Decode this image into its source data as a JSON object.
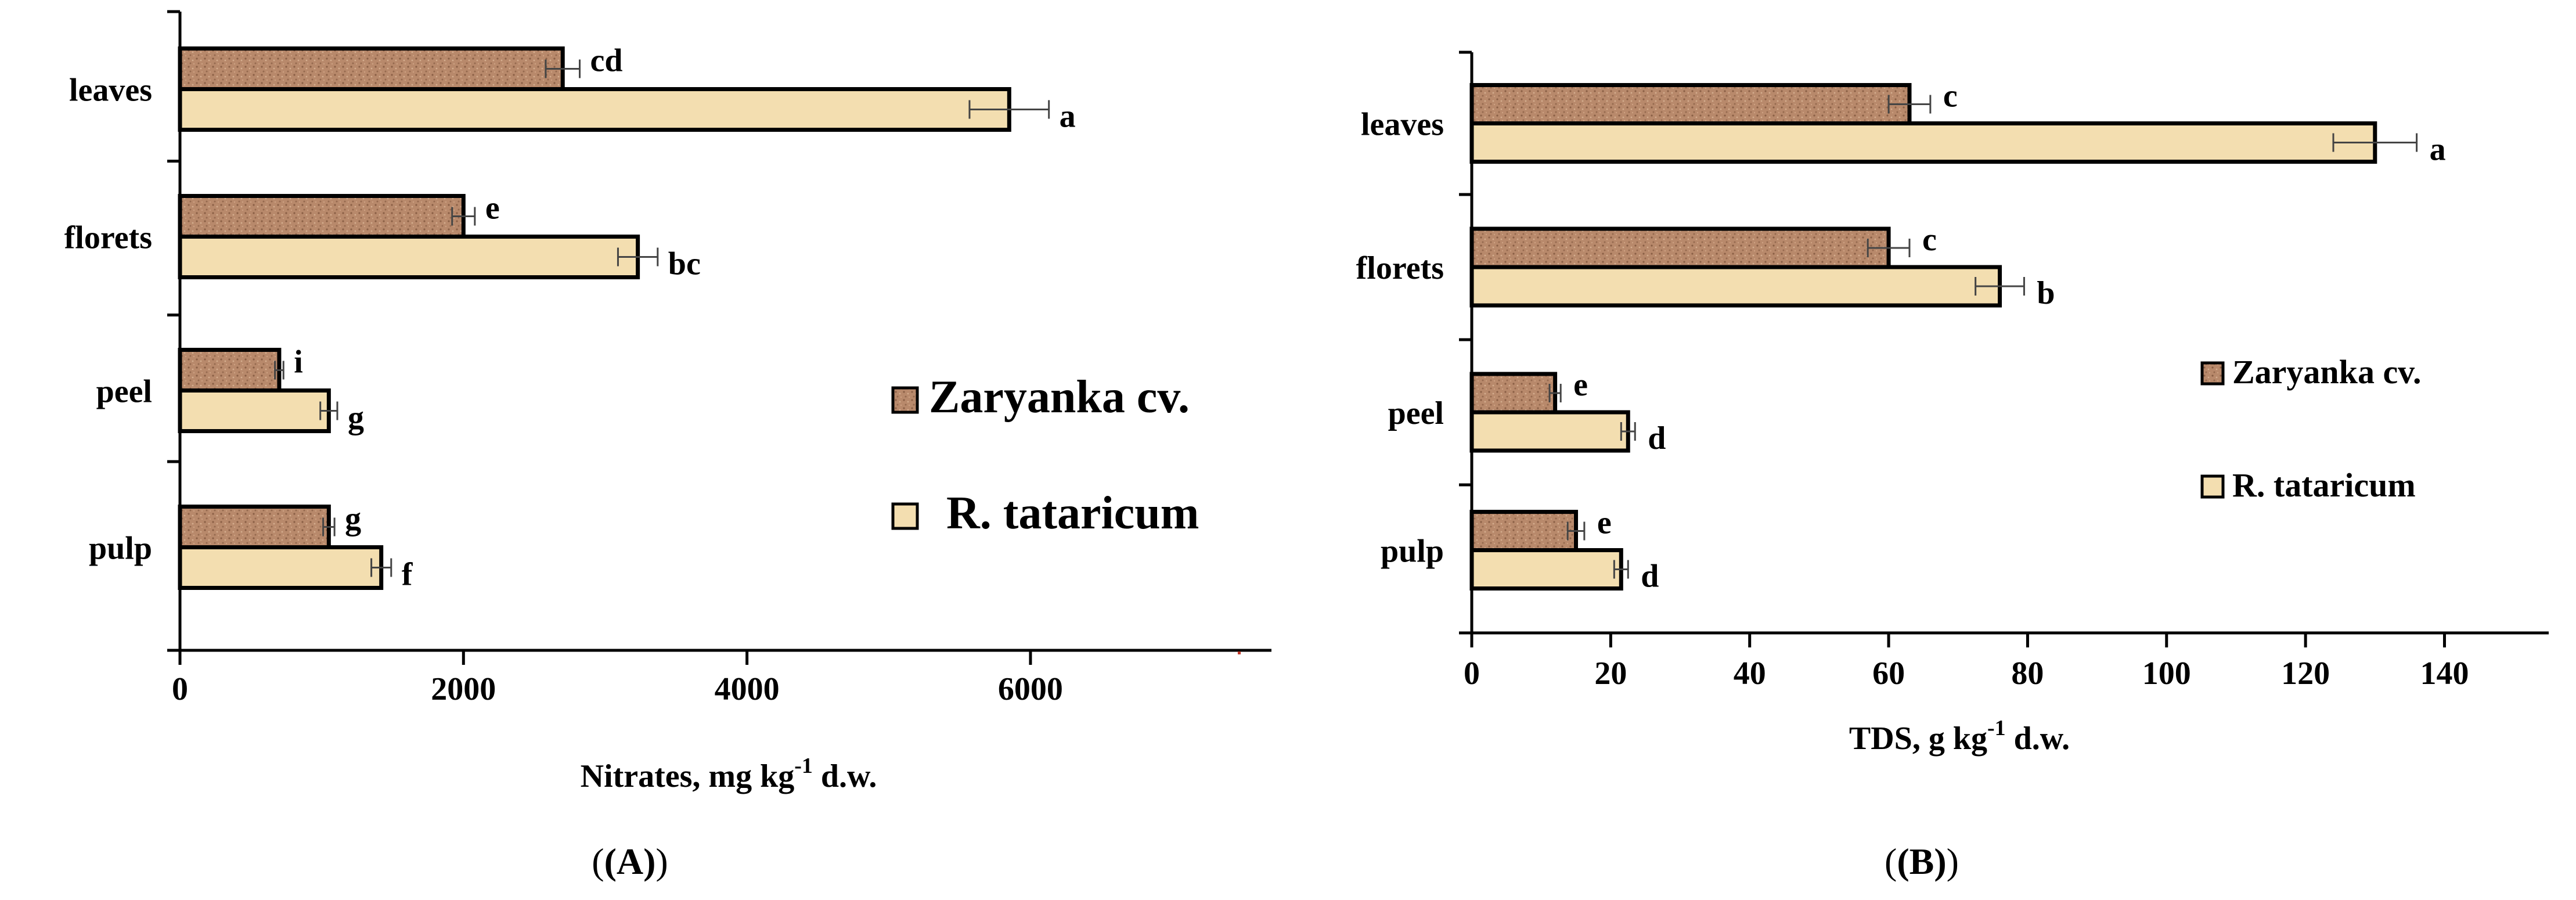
{
  "chart_data": [
    {
      "type": "bar",
      "orientation": "horizontal",
      "panel_label": "(A)",
      "xlabel": "Nitrates, mg kg",
      "xlabel_sup": "-1",
      "xlabel_suffix": " d.w.",
      "xlim": [
        0,
        7700
      ],
      "xticks": [
        0,
        2000,
        4000,
        6000
      ],
      "grid": false,
      "legend_position": "center-right",
      "categories": [
        "leaves",
        "florets",
        "peel",
        "pulp"
      ],
      "series": [
        {
          "name": "Zaryanka cv.",
          "color": "#b8896b",
          "values": [
            2700,
            2000,
            700,
            1050
          ],
          "errors": [
            120,
            80,
            30,
            40
          ],
          "letters": [
            "cd",
            "e",
            "i",
            "g"
          ]
        },
        {
          "name": "R. tataricum",
          "color": "#f3deb0",
          "values": [
            5850,
            3230,
            1050,
            1420
          ],
          "errors": [
            280,
            140,
            60,
            70
          ],
          "letters": [
            "a",
            "bc",
            "g",
            "f"
          ]
        }
      ]
    },
    {
      "type": "bar",
      "orientation": "horizontal",
      "panel_label": "(B)",
      "xlabel": "TDS, g kg",
      "xlabel_sup": "-1",
      "xlabel_suffix": " d.w.",
      "xlim": [
        0,
        155
      ],
      "xticks": [
        0,
        20,
        40,
        60,
        80,
        100,
        120,
        140
      ],
      "grid": false,
      "legend_position": "center-right",
      "categories": [
        "leaves",
        "florets",
        "peel",
        "pulp"
      ],
      "series": [
        {
          "name": "Zaryanka cv.",
          "color": "#b8896b",
          "values": [
            63,
            60,
            12,
            15
          ],
          "errors": [
            3,
            3,
            0.8,
            1.2
          ],
          "letters": [
            "c",
            "c",
            "e",
            "e"
          ]
        },
        {
          "name": "R. tataricum",
          "color": "#f3deb0",
          "values": [
            130,
            76,
            22.5,
            21.5
          ],
          "errors": [
            6,
            3.5,
            1,
            1
          ],
          "letters": [
            "a",
            "b",
            "d",
            "d"
          ]
        }
      ]
    }
  ]
}
